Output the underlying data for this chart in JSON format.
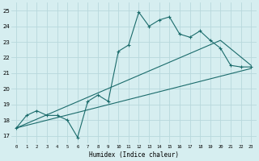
{
  "xlabel": "Humidex (Indice chaleur)",
  "ylabel": "",
  "background_color": "#d6eef0",
  "grid_color": "#b8d8dc",
  "line_color": "#1a6b6b",
  "xlim": [
    -0.5,
    23.5
  ],
  "ylim": [
    16.5,
    25.5
  ],
  "xticks": [
    0,
    1,
    2,
    3,
    4,
    5,
    6,
    7,
    8,
    9,
    10,
    11,
    12,
    13,
    14,
    15,
    16,
    17,
    18,
    19,
    20,
    21,
    22,
    23
  ],
  "yticks": [
    17,
    18,
    19,
    20,
    21,
    22,
    23,
    24,
    25
  ],
  "scatter_x": [
    0,
    1,
    2,
    3,
    4,
    5,
    6,
    7,
    8,
    9,
    10,
    11,
    12,
    13,
    14,
    15,
    16,
    17,
    18,
    19,
    20,
    21,
    22,
    23
  ],
  "scatter_y": [
    17.5,
    18.3,
    18.6,
    18.3,
    18.3,
    18.0,
    16.9,
    19.2,
    19.6,
    19.2,
    22.4,
    22.8,
    24.9,
    24.0,
    24.4,
    24.6,
    23.5,
    23.3,
    23.7,
    23.1,
    22.6,
    21.5,
    21.4,
    21.4
  ],
  "line1_x": [
    0,
    23
  ],
  "line1_y": [
    17.5,
    21.3
  ],
  "line2_x": [
    0,
    20,
    23
  ],
  "line2_y": [
    17.5,
    23.1,
    21.5
  ],
  "figsize": [
    3.2,
    2.0
  ],
  "dpi": 100
}
